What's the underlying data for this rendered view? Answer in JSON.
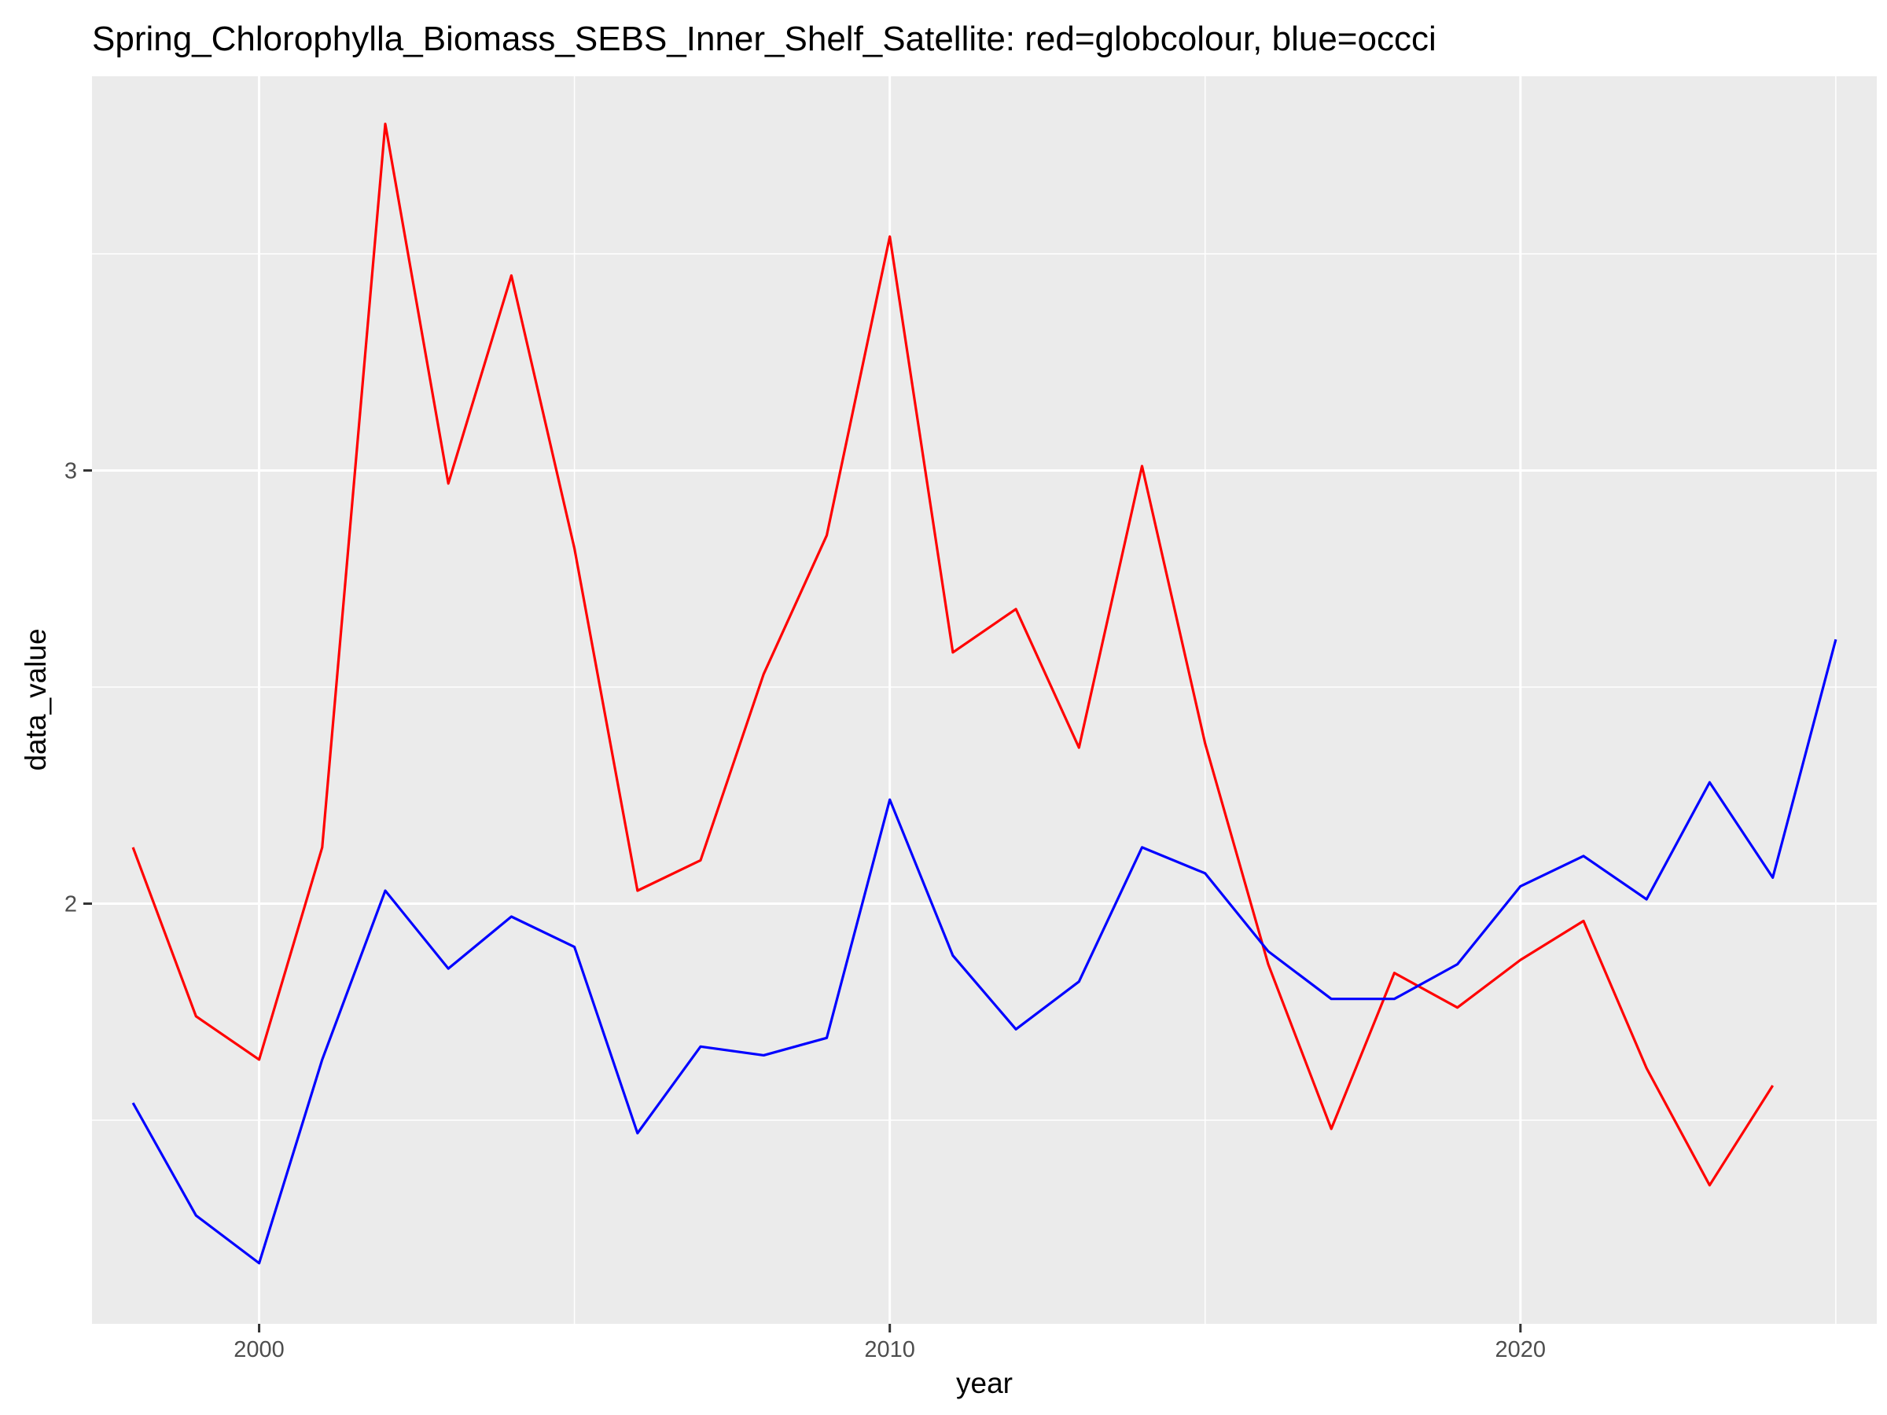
{
  "chart_data": {
    "type": "line",
    "title": "Spring_Chlorophylla_Biomass_SEBS_Inner_Shelf_Satellite: red=globcolour, blue=occci",
    "xlabel": "year",
    "ylabel": "data_value",
    "xlim": [
      1997.35,
      2025.65
    ],
    "ylim": [
      1.03,
      3.91
    ],
    "x_ticks": [
      2000,
      2010,
      2020
    ],
    "x_tick_labels": [
      "2000",
      "2010",
      "2020"
    ],
    "x_minor_ticks": [
      1995,
      2005,
      2015,
      2025
    ],
    "y_ticks": [
      2,
      3
    ],
    "y_tick_labels": [
      "2",
      "3"
    ],
    "y_minor_ticks": [
      1.5,
      2.5,
      3.5
    ],
    "grid": true,
    "legend": "none",
    "series": [
      {
        "color": "#ff0000",
        "x": [
          1998,
          1999,
          2000,
          2001,
          2002,
          2003,
          2004,
          2005,
          2006,
          2007,
          2008,
          2009,
          2010,
          2011,
          2012,
          2013,
          2014,
          2015,
          2016,
          2017,
          2018,
          2019,
          2020,
          2021,
          2022,
          2023,
          2024
        ],
        "y": [
          2.13,
          1.74,
          1.64,
          2.13,
          3.8,
          2.97,
          3.45,
          2.82,
          2.03,
          2.1,
          2.53,
          2.85,
          3.54,
          2.58,
          2.68,
          2.36,
          3.01,
          2.37,
          1.86,
          1.48,
          1.84,
          1.76,
          1.87,
          1.96,
          1.62,
          1.35,
          1.58
        ]
      },
      {
        "color": "#0000ff",
        "x": [
          1998,
          1999,
          2000,
          2001,
          2002,
          2003,
          2004,
          2005,
          2006,
          2007,
          2008,
          2009,
          2010,
          2011,
          2012,
          2013,
          2014,
          2015,
          2016,
          2017,
          2018,
          2019,
          2020,
          2021,
          2022,
          2023,
          2024,
          2025
        ],
        "y": [
          1.54,
          1.28,
          1.17,
          1.64,
          2.03,
          1.85,
          1.97,
          1.9,
          1.47,
          1.67,
          1.65,
          1.69,
          2.24,
          1.88,
          1.71,
          1.82,
          2.13,
          2.07,
          1.89,
          1.78,
          1.78,
          1.86,
          2.04,
          2.11,
          2.01,
          2.28,
          2.06,
          2.61
        ]
      }
    ]
  }
}
